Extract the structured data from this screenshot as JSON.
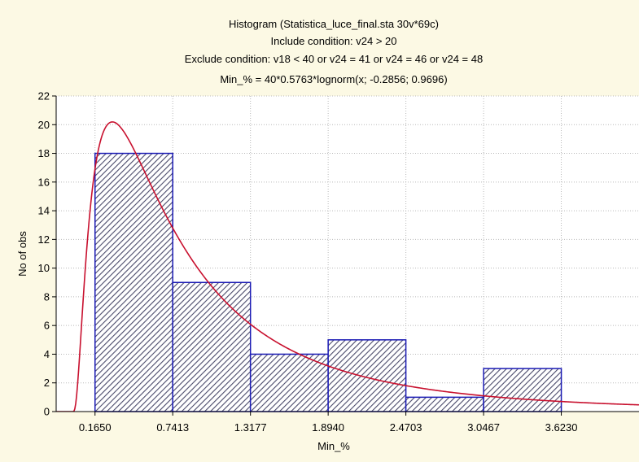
{
  "chart_data": {
    "type": "bar",
    "title_lines": [
      "Histogram (Statistica_luce_final.sta 30v*69c)",
      "Include condition: v24 > 20",
      "Exclude condition: v18 < 40 or v24 = 41 or v24 = 46 or v24 = 48",
      "Min_% = 40*0.5763*lognorm(x; -0.2856; 0.9696)"
    ],
    "xlabel": "Min_%",
    "ylabel": "No of obs",
    "xlim": [
      -0.1232,
      4.1992
    ],
    "ylim": [
      0,
      22
    ],
    "y_ticks": [
      "0",
      "2",
      "4",
      "6",
      "8",
      "10",
      "12",
      "14",
      "16",
      "18",
      "20",
      "22"
    ],
    "x_ticks": [
      "0.1650",
      "0.7413",
      "1.3177",
      "1.8940",
      "2.4703",
      "3.0467",
      "3.6230"
    ],
    "bins": [
      {
        "from": 0.165,
        "to": 0.7413,
        "count": 18
      },
      {
        "from": 0.7413,
        "to": 1.3177,
        "count": 9
      },
      {
        "from": 1.3177,
        "to": 1.894,
        "count": 4
      },
      {
        "from": 1.894,
        "to": 2.4703,
        "count": 5
      },
      {
        "from": 2.4703,
        "to": 3.0467,
        "count": 1
      },
      {
        "from": 3.0467,
        "to": 3.623,
        "count": 3
      }
    ],
    "fit": {
      "distribution": "lognormal",
      "n": 40,
      "bin_width": 0.5763,
      "mu": -0.2856,
      "sigma": 0.9696
    },
    "grid": true,
    "colors": {
      "background": "#fcf9e4",
      "plot_area": "#ffffff",
      "bar_edge": "#1a1ab4",
      "bar_hatch": "#4a4a6a",
      "fit_line": "#c8102e",
      "grid": "#b8b8b8"
    }
  }
}
